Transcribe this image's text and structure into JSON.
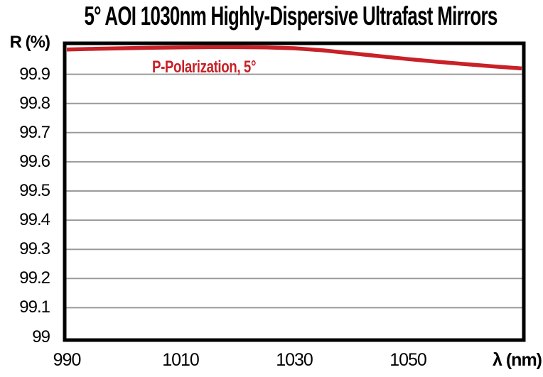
{
  "title": "5° AOI 1030nm Highly-Dispersive Ultrafast Mirrors",
  "chart_data": {
    "type": "line",
    "title": "5° AOI 1030nm Highly-Dispersive Ultrafast Mirrors",
    "ylabel": "R (%)",
    "xlabel": "λ (nm)",
    "xlim": [
      990,
      1070
    ],
    "ylim": [
      99,
      100
    ],
    "xticks": [
      990,
      1010,
      1030,
      1050
    ],
    "yticks": [
      99.9,
      99.8,
      99.7,
      99.6,
      99.5,
      99.4,
      99.3,
      99.2,
      99.1,
      99
    ],
    "grid": "horizontal",
    "legend_position": "inline-annotation-top-left",
    "colors": {
      "series": "#C82127",
      "grid": "#9A9A9A",
      "axis": "#000000",
      "text": "#000000",
      "background": "#FFFFFF"
    },
    "series": [
      {
        "name": "P-Polarization, 5°",
        "color": "#C82127",
        "x": [
          990,
          995,
          1000,
          1005,
          1010,
          1015,
          1020,
          1025,
          1030,
          1035,
          1040,
          1045,
          1050,
          1055,
          1060,
          1065,
          1070
        ],
        "y": [
          99.985,
          99.987,
          99.989,
          99.991,
          99.992,
          99.993,
          99.993,
          99.992,
          99.989,
          99.982,
          99.972,
          99.962,
          99.952,
          99.943,
          99.935,
          99.927,
          99.92
        ]
      }
    ]
  }
}
